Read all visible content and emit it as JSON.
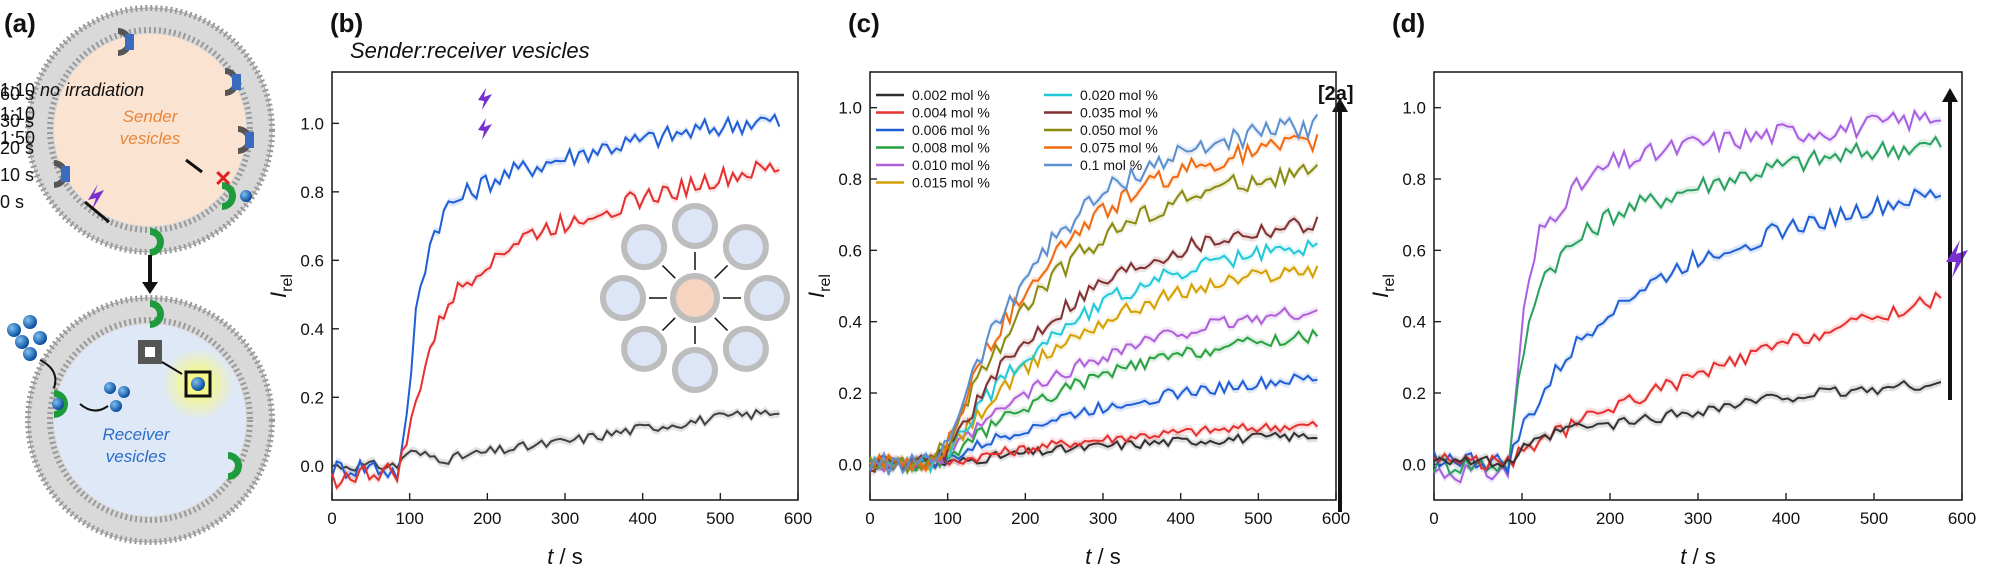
{
  "panels": {
    "a": {
      "label": "(a)",
      "sender_text": "Sender vesicles",
      "receiver_text": "Receiver vesicles"
    },
    "b": {
      "label": "(b)",
      "subtitle": "Sender:receiver vesicles"
    },
    "c": {
      "label": "(c)",
      "tag": "[2a]"
    },
    "d": {
      "label": "(d)"
    }
  },
  "chart_data": [
    {
      "panel": "b",
      "type": "line",
      "title": "Sender:receiver vesicles",
      "xlabel": "t / s",
      "ylabel": "I_rel",
      "xlim": [
        0,
        600
      ],
      "ylim": [
        -0.1,
        1.15
      ],
      "xticks": [
        0,
        100,
        200,
        300,
        400,
        500,
        600
      ],
      "yticks": [
        0.0,
        0.2,
        0.4,
        0.6,
        0.8,
        1.0
      ],
      "legend_position": "top-left",
      "series": [
        {
          "name": "1:10 no irradiation",
          "color": "#404040",
          "x": [
            0,
            50,
            85,
            95,
            150,
            200,
            300,
            400,
            500,
            580
          ],
          "y": [
            0.0,
            0.0,
            0.0,
            0.04,
            0.02,
            0.04,
            0.07,
            0.11,
            0.14,
            0.16
          ]
        },
        {
          "name": "1:10",
          "color": "#1f5fd6",
          "x": [
            0,
            50,
            85,
            95,
            110,
            130,
            150,
            200,
            250,
            300,
            350,
            400,
            450,
            500,
            550,
            580
          ],
          "y": [
            -0.01,
            0.0,
            -0.02,
            0.1,
            0.5,
            0.68,
            0.76,
            0.83,
            0.87,
            0.9,
            0.93,
            0.95,
            0.97,
            0.99,
            1.01,
            1.0
          ]
        },
        {
          "name": "1:50",
          "color": "#e53030",
          "x": [
            0,
            50,
            85,
            100,
            120,
            150,
            200,
            250,
            300,
            350,
            400,
            450,
            500,
            550,
            580
          ],
          "y": [
            -0.04,
            -0.02,
            -0.02,
            0.1,
            0.3,
            0.48,
            0.6,
            0.67,
            0.71,
            0.75,
            0.78,
            0.81,
            0.84,
            0.86,
            0.87
          ]
        }
      ]
    },
    {
      "panel": "c",
      "type": "line",
      "xlabel": "t / s",
      "ylabel": "I_rel",
      "xlim": [
        0,
        600
      ],
      "ylim": [
        -0.1,
        1.1
      ],
      "xticks": [
        0,
        100,
        200,
        300,
        400,
        500,
        600
      ],
      "yticks": [
        0.0,
        0.2,
        0.4,
        0.6,
        0.8,
        1.0
      ],
      "legend_position": "top-left",
      "series": [
        {
          "name": "0.002 mol %",
          "color": "#303030",
          "final": 0.08
        },
        {
          "name": "0.004 mol %",
          "color": "#e53030",
          "final": 0.11
        },
        {
          "name": "0.006 mol %",
          "color": "#1f5fd6",
          "final": 0.24
        },
        {
          "name": "0.008 mol %",
          "color": "#2aa040",
          "final": 0.36
        },
        {
          "name": "0.010 mol %",
          "color": "#b060d8",
          "final": 0.43
        },
        {
          "name": "0.015 mol %",
          "color": "#d4a000",
          "final": 0.55
        },
        {
          "name": "0.020 mol %",
          "color": "#20c8d8",
          "final": 0.61
        },
        {
          "name": "0.035 mol %",
          "color": "#803030",
          "final": 0.68
        },
        {
          "name": "0.050 mol %",
          "color": "#8a8a10",
          "final": 0.82
        },
        {
          "name": "0.075 mol %",
          "color": "#f06a10",
          "final": 0.9
        },
        {
          "name": "0.1 mol %",
          "color": "#5b8fd0",
          "final": 0.95
        }
      ]
    },
    {
      "panel": "d",
      "type": "line",
      "xlabel": "t / s",
      "ylabel": "I_rel",
      "xlim": [
        0,
        600
      ],
      "ylim": [
        -0.1,
        1.1
      ],
      "xticks": [
        0,
        100,
        200,
        300,
        400,
        500,
        600
      ],
      "yticks": [
        0.0,
        0.2,
        0.4,
        0.6,
        0.8,
        1.0
      ],
      "legend_position": "top-left",
      "series": [
        {
          "name": "60 s",
          "color": "#a860e0",
          "x": [
            0,
            85,
            100,
            120,
            150,
            200,
            300,
            400,
            500,
            580
          ],
          "y": [
            -0.02,
            -0.02,
            0.4,
            0.65,
            0.75,
            0.84,
            0.9,
            0.93,
            0.95,
            0.98
          ]
        },
        {
          "name": "30 s",
          "color": "#2aa060",
          "x": [
            0,
            85,
            100,
            120,
            150,
            200,
            300,
            400,
            500,
            580
          ],
          "y": [
            0.0,
            0.0,
            0.3,
            0.52,
            0.6,
            0.7,
            0.78,
            0.84,
            0.88,
            0.9
          ]
        },
        {
          "name": "20 s",
          "color": "#1f5fd6",
          "x": [
            0,
            85,
            100,
            130,
            150,
            200,
            300,
            400,
            500,
            580
          ],
          "y": [
            0.02,
            0.0,
            0.1,
            0.22,
            0.3,
            0.44,
            0.58,
            0.66,
            0.72,
            0.76
          ]
        },
        {
          "name": "10 s",
          "color": "#e53030",
          "x": [
            0,
            85,
            100,
            150,
            200,
            300,
            400,
            500,
            580
          ],
          "y": [
            0.02,
            0.0,
            0.04,
            0.1,
            0.16,
            0.25,
            0.34,
            0.41,
            0.47
          ]
        },
        {
          "name": "0 s",
          "color": "#333333",
          "x": [
            0,
            85,
            100,
            150,
            200,
            300,
            400,
            500,
            580
          ],
          "y": [
            0.02,
            0.0,
            0.04,
            0.1,
            0.11,
            0.15,
            0.19,
            0.21,
            0.23
          ]
        }
      ]
    }
  ]
}
